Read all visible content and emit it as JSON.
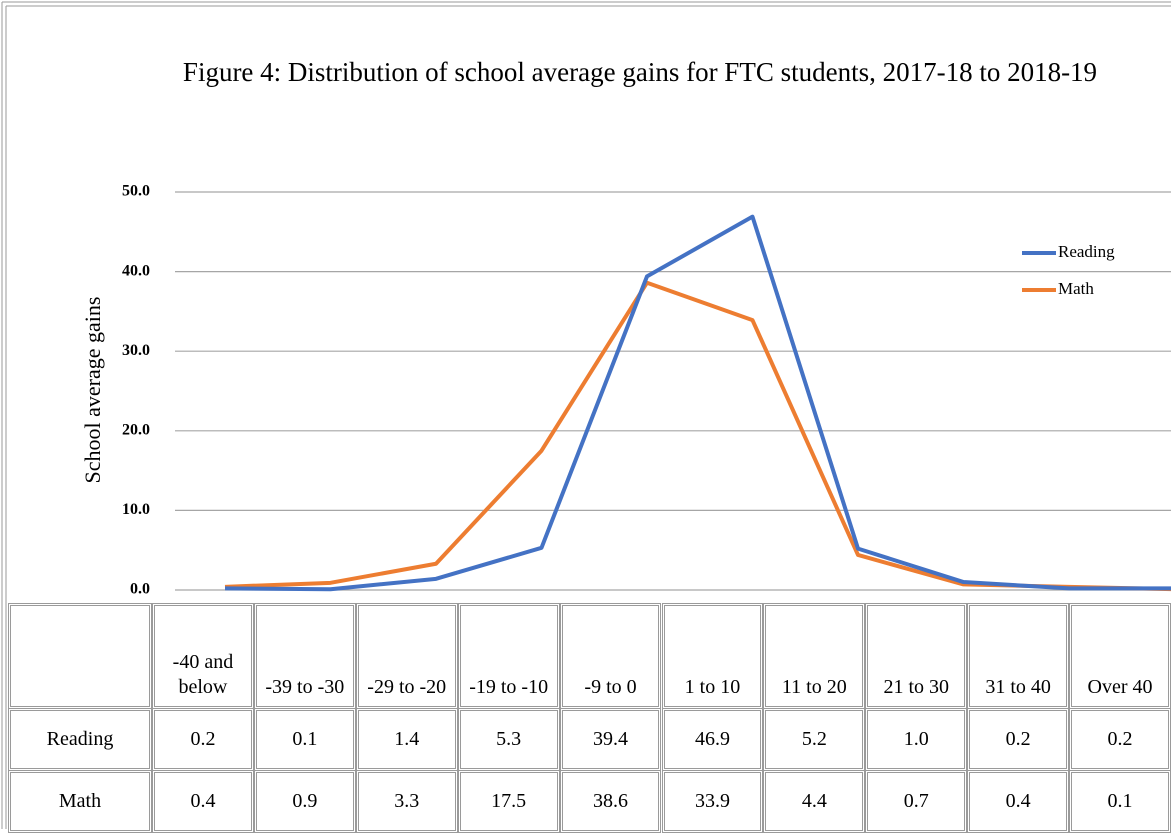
{
  "chart_data": {
    "type": "line",
    "title": "Figure 4: Distribution of school average gains for FTC students, 2017-18 to 2018-19",
    "y_label": "School average gains",
    "categories": [
      "-40 and below",
      "-39 to -30",
      "-29 to -20",
      "-19 to -10",
      "-9 to 0",
      "1 to 10",
      "11 to 20",
      "21 to 30",
      "31 to 40",
      "Over 40"
    ],
    "series": [
      {
        "name": "Reading",
        "color": "#4472c4",
        "values": [
          0.2,
          0.1,
          1.4,
          5.3,
          39.4,
          46.9,
          5.2,
          1.0,
          0.2,
          0.2
        ],
        "value_labels": [
          "0.2",
          "0.1",
          "1.4",
          "5.3",
          "39.4",
          "46.9",
          "5.2",
          "1.0",
          "0.2",
          "0.2"
        ]
      },
      {
        "name": "Math",
        "color": "#ed7d31",
        "values": [
          0.4,
          0.9,
          3.3,
          17.5,
          38.6,
          33.9,
          4.4,
          0.7,
          0.4,
          0.1
        ],
        "value_labels": [
          "0.4",
          "0.9",
          "3.3",
          "17.5",
          "38.6",
          "33.9",
          "4.4",
          "0.7",
          "0.4",
          "0.1"
        ]
      }
    ],
    "ylim": [
      0,
      50
    ],
    "yticks": [
      {
        "value": 0,
        "label": "0.0"
      },
      {
        "value": 10,
        "label": "10.0"
      },
      {
        "value": 20,
        "label": "20.0"
      },
      {
        "value": 30,
        "label": "30.0"
      },
      {
        "value": 40,
        "label": "40.0"
      },
      {
        "value": 50,
        "label": "50.0"
      }
    ],
    "grid": true,
    "legend": "right"
  }
}
